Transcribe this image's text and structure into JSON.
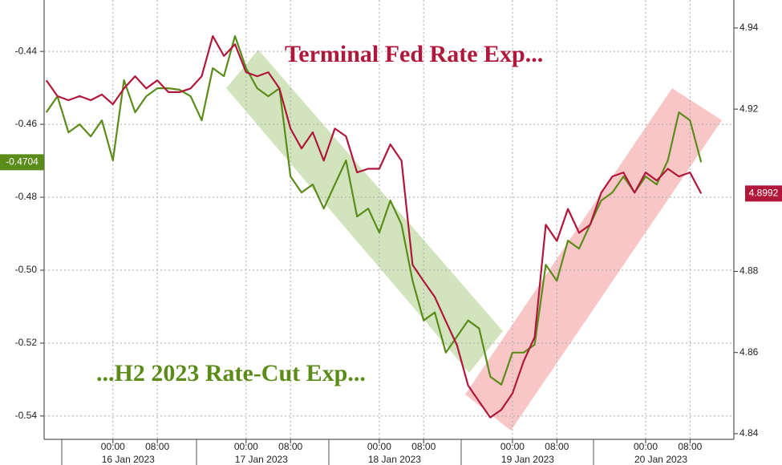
{
  "chart_data": {
    "type": "line",
    "annotations": [
      {
        "text": "Terminal Fed Rate Exp...",
        "color": "#b0173a"
      },
      {
        "text": "...H2 2023 Rate-Cut Exp...",
        "color": "#5b8c1a"
      }
    ],
    "x": [
      -12,
      -10,
      -8,
      -6,
      -4,
      -2,
      0,
      2,
      4,
      6,
      8,
      10,
      12,
      14,
      16,
      18,
      20,
      22,
      24,
      26,
      28,
      30,
      32,
      34,
      36,
      38,
      40,
      42,
      44,
      46,
      48,
      50,
      52,
      54,
      56,
      58,
      60,
      62,
      64,
      66,
      68,
      70,
      72,
      74,
      76,
      78,
      80,
      82,
      84,
      86,
      88,
      90,
      92,
      94,
      96,
      98,
      100,
      102,
      104,
      106
    ],
    "series": [
      {
        "name": "H2 2023 Rate-Cut Exp",
        "color": "#5b8c1a",
        "axis": "y",
        "values": [
          -0.4567,
          -0.4523,
          -0.4622,
          -0.46,
          -0.4633,
          -0.4589,
          -0.4699,
          -0.4479,
          -0.4567,
          -0.4523,
          -0.4501,
          -0.4501,
          -0.4505,
          -0.4523,
          -0.4589,
          -0.4446,
          -0.4468,
          -0.4358,
          -0.4446,
          -0.4501,
          -0.4523,
          -0.4501,
          -0.4743,
          -0.4787,
          -0.4765,
          -0.4831,
          -0.4765,
          -0.4699,
          -0.4853,
          -0.4831,
          -0.4897,
          -0.4809,
          -0.4875,
          -0.5029,
          -0.5138,
          -0.5116,
          -0.5226,
          -0.5182,
          -0.5138,
          -0.516,
          -0.5292,
          -0.5314,
          -0.5226,
          -0.5226,
          -0.5204,
          -0.4985,
          -0.5029,
          -0.4919,
          -0.4941,
          -0.4875,
          -0.4809,
          -0.4787,
          -0.4743,
          -0.4787,
          -0.4743,
          -0.4765,
          -0.4699,
          -0.4567,
          -0.4589,
          -0.4704
        ]
      },
      {
        "name": "Terminal Fed Rate Exp",
        "color": "#b0173a",
        "axis": "y2",
        "values": [
          4.9271,
          4.9232,
          4.9222,
          4.9232,
          4.9222,
          4.9236,
          4.9212,
          4.9251,
          4.9281,
          4.9251,
          4.9271,
          4.9242,
          4.9242,
          4.9251,
          4.9281,
          4.938,
          4.9331,
          4.936,
          4.9291,
          4.9281,
          4.9291,
          4.9251,
          4.9152,
          4.9103,
          4.9143,
          4.9073,
          4.9152,
          4.9133,
          4.9044,
          4.9053,
          4.9053,
          4.9113,
          4.9073,
          4.8816,
          4.8776,
          4.8737,
          4.8677,
          4.8618,
          4.8519,
          4.8479,
          4.844,
          4.8459,
          4.8499,
          4.8578,
          4.8638,
          4.8915,
          4.8875,
          4.8954,
          4.8895,
          4.8915,
          4.8994,
          4.9034,
          4.9044,
          4.8994,
          4.9044,
          4.9024,
          4.9053,
          4.9034,
          4.9044,
          4.8992
        ]
      }
    ],
    "last_values": [
      -0.4704,
      4.8992
    ],
    "xlim": [
      -12.4,
      111.9
    ],
    "xticks": [
      {
        "value": 0,
        "label": "00:00"
      },
      {
        "value": 8,
        "label": "08:00"
      },
      {
        "value": 24,
        "label": "00:00"
      },
      {
        "value": 32,
        "label": "08:00"
      },
      {
        "value": 48,
        "label": "00:00"
      },
      {
        "value": 56,
        "label": "08:00"
      },
      {
        "value": 72,
        "label": "00:00"
      },
      {
        "value": 80,
        "label": "08:00"
      },
      {
        "value": 96,
        "label": "00:00"
      },
      {
        "value": 104,
        "label": "08:00"
      }
    ],
    "xday_labels": [
      {
        "value": 0,
        "label": "16 Jan 2023"
      },
      {
        "value": 24,
        "label": "17 Jan 2023"
      },
      {
        "value": 48,
        "label": "18 Jan 2023"
      },
      {
        "value": 72,
        "label": "19 Jan 2023"
      },
      {
        "value": 96,
        "label": "20 Jan 2023"
      }
    ],
    "ylim": [
      -0.5464,
      -0.4259
    ],
    "yticks": [
      -0.44,
      -0.46,
      -0.48,
      {
        "value": -0.5,
        "label": "-0.50"
      },
      -0.52,
      -0.54
    ],
    "y2lim": [
      4.8386,
      4.9469
    ],
    "y2ticks": [
      4.84,
      4.86,
      4.88,
      4.92,
      4.94
    ],
    "grid": true
  }
}
